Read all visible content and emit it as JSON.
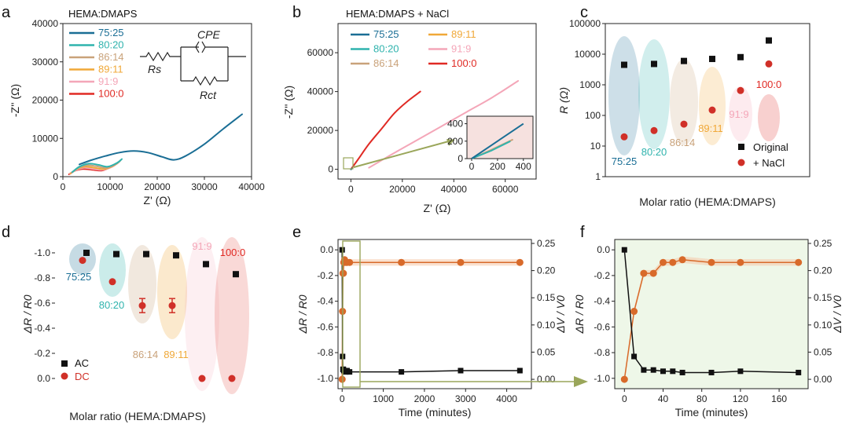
{
  "colors": {
    "75:25": "#1a6e95",
    "80:20": "#2fb3ad",
    "86:14": "#c9a27a",
    "89:11": "#f0a838",
    "91:9": "#f4a6b8",
    "100:0": "#e02a24",
    "ac": "#111111",
    "dc": "#d03028",
    "dv": "#d86a2a",
    "inset_arrow": "#9aa65a"
  },
  "chart_data": [
    {
      "panel": "a",
      "type": "line",
      "title": "HEMA:DMAPS",
      "xlabel": "Z' (Ω)",
      "ylabel": "-Z'' (Ω)",
      "xlim": [
        0,
        40000
      ],
      "ylim": [
        0,
        40000
      ],
      "xticks": [
        "0",
        "10000",
        "20000",
        "30000",
        "40000"
      ],
      "yticks": [
        "0",
        "10000",
        "20000",
        "30000",
        "40000"
      ],
      "circuit_labels": {
        "rs": "Rs",
        "cpe": "CPE",
        "rct": "Rct"
      },
      "series": [
        {
          "name": "75:25",
          "x": [
            3500,
            6000,
            9000,
            12000,
            15000,
            18000,
            21000,
            23500,
            26000,
            30000,
            34000,
            38000
          ],
          "y": [
            3200,
            4300,
            5400,
            6300,
            6700,
            6300,
            5200,
            4400,
            5400,
            8500,
            12500,
            16300
          ]
        },
        {
          "name": "80:20",
          "x": [
            2000,
            3500,
            5500,
            7500,
            9500,
            11500,
            12500
          ],
          "y": [
            1200,
            2600,
            3400,
            3100,
            2600,
            3600,
            4600
          ]
        },
        {
          "name": "86:14",
          "x": [
            1800,
            3300,
            5200,
            7200,
            9200,
            11200,
            12200
          ],
          "y": [
            1000,
            2300,
            3000,
            2700,
            2300,
            3200,
            4200
          ]
        },
        {
          "name": "89:11",
          "x": [
            1600,
            3000,
            4800,
            6800,
            8800,
            10800,
            11800
          ],
          "y": [
            800,
            2000,
            2600,
            2300,
            2000,
            2900,
            3800
          ]
        },
        {
          "name": "91:9",
          "x": [
            1500,
            2800,
            4500,
            6500,
            8500,
            10500,
            11500
          ],
          "y": [
            700,
            1700,
            2300,
            2000,
            1800,
            2600,
            3500
          ]
        },
        {
          "name": "100:0",
          "x": [
            1300,
            2500,
            4200,
            6200,
            8200,
            10000,
            11000
          ],
          "y": [
            600,
            1500,
            2000,
            1800,
            1600,
            2400,
            3200
          ]
        }
      ]
    },
    {
      "panel": "b",
      "type": "line",
      "title": "HEMA:DMAPS + NaCl",
      "xlabel": "Z' (Ω)",
      "ylabel": "-Z'' (Ω)",
      "xlim": [
        -5000,
        72000
      ],
      "ylim": [
        -5000,
        75000
      ],
      "xticks": [
        "0",
        "20000",
        "40000",
        "60000"
      ],
      "yticks": [
        "0",
        "20000",
        "40000",
        "60000"
      ],
      "series": [
        {
          "name": "75:25",
          "x": [
            0,
            150,
            300,
            400
          ],
          "y": [
            0,
            150,
            300,
            400
          ]
        },
        {
          "name": "80:20",
          "x": [
            0,
            150,
            300
          ],
          "y": [
            0,
            90,
            200
          ]
        },
        {
          "name": "86:14",
          "x": [
            0,
            150,
            320
          ],
          "y": [
            0,
            100,
            220
          ]
        },
        {
          "name": "89:11",
          "x": [
            0,
            200
          ],
          "y": [
            0,
            120
          ]
        },
        {
          "name": "91:9",
          "x": [
            7000,
            15000,
            25000,
            35000,
            45000,
            55000,
            65000
          ],
          "y": [
            800,
            7000,
            14500,
            22000,
            29500,
            37000,
            45500
          ]
        },
        {
          "name": "100:0",
          "x": [
            0,
            3000,
            7000,
            12000,
            17000,
            22000,
            27000
          ],
          "y": [
            0,
            5500,
            13000,
            21000,
            29000,
            35000,
            40000
          ]
        }
      ],
      "inset": {
        "xlim": [
          0,
          450
        ],
        "ylim": [
          0,
          450
        ],
        "xticks": [
          "0",
          "200",
          "400"
        ],
        "yticks": [
          "0",
          "200",
          "400"
        ]
      }
    },
    {
      "panel": "c",
      "type": "scatter",
      "xlabel": "Molar ratio (HEMA:DMAPS)",
      "ylabel": "R (Ω)",
      "ylim": [
        1,
        100000
      ],
      "yscale": "log",
      "yticks": [
        "1",
        "10",
        "100",
        "1000",
        "10000",
        "100000"
      ],
      "categories": [
        "75:25",
        "80:20",
        "86:14",
        "89:11",
        "91:9",
        "100:0"
      ],
      "series": [
        {
          "name": "Original",
          "values": [
            4500,
            4800,
            6000,
            7000,
            8000,
            28000
          ]
        },
        {
          "name": "+ NaCl",
          "values": [
            20,
            32,
            52,
            150,
            650,
            4800
          ]
        }
      ]
    },
    {
      "panel": "d",
      "type": "scatter",
      "xlabel": "Molar ratio (HEMA:DMAPS)",
      "ylabel": "ΔR / R0",
      "ylim": [
        0.1,
        -1.1
      ],
      "yticks": [
        "-1.0",
        "-0.8",
        "-0.6",
        "-0.4",
        "-0.2",
        "0.0"
      ],
      "categories": [
        "75:25",
        "80:20",
        "86:14",
        "89:11",
        "91:9",
        "100:0"
      ],
      "series": [
        {
          "name": "AC",
          "values": [
            -1.0,
            -0.99,
            -0.99,
            -0.98,
            -0.91,
            -0.83
          ]
        },
        {
          "name": "DC",
          "values": [
            -0.94,
            -0.77,
            -0.58,
            -0.58,
            0.0,
            0.0
          ]
        }
      ]
    },
    {
      "panel": "e",
      "type": "line",
      "xlabel": "Time (minutes)",
      "ylabel": "ΔR / R0",
      "y2label": "ΔV / V0",
      "xlim": [
        -100,
        4600
      ],
      "ylim": [
        -1.05,
        0.05
      ],
      "y2lim": [
        -0.01,
        0.25
      ],
      "xticks": [
        "0",
        "1000",
        "2000",
        "3000",
        "4000"
      ],
      "yticks": [
        "0.0",
        "-0.2",
        "-0.4",
        "-0.6",
        "-0.8",
        "-1.0"
      ],
      "y2ticks": [
        "0.00",
        "0.05",
        "0.10",
        "0.15",
        "0.20",
        "0.25"
      ],
      "series": [
        {
          "name": "ΔR/R0",
          "x": [
            0,
            10,
            20,
            30,
            40,
            50,
            60,
            90,
            120,
            180,
            1440,
            2880,
            4320
          ],
          "values": [
            0.0,
            -0.83,
            -0.93,
            -0.93,
            -0.94,
            -0.94,
            -0.94,
            -0.95,
            -0.94,
            -0.95,
            -0.95,
            -0.94,
            -0.94
          ]
        },
        {
          "name": "ΔV/V0",
          "x": [
            0,
            10,
            20,
            30,
            40,
            50,
            60,
            90,
            120,
            180,
            1440,
            2880,
            4320
          ],
          "values": [
            0.0,
            0.125,
            0.195,
            0.195,
            0.215,
            0.215,
            0.22,
            0.215,
            0.215,
            0.215,
            0.215,
            0.215,
            0.215
          ]
        }
      ]
    },
    {
      "panel": "f",
      "type": "line",
      "xlabel": "Time (minutes)",
      "ylabel": "ΔR / R0",
      "y2label": "ΔV / V0",
      "xlim": [
        -10,
        190
      ],
      "ylim": [
        -1.05,
        0.05
      ],
      "y2lim": [
        -0.01,
        0.25
      ],
      "xticks": [
        "0",
        "40",
        "80",
        "120",
        "160"
      ],
      "yticks": [
        "0.0",
        "-0.2",
        "-0.4",
        "-0.6",
        "-0.8",
        "-1.0"
      ],
      "y2ticks": [
        "0.00",
        "0.05",
        "0.10",
        "0.15",
        "0.20",
        "0.25"
      ],
      "series": [
        {
          "name": "ΔR/R0",
          "x": [
            0,
            10,
            20,
            30,
            40,
            50,
            60,
            90,
            120,
            180
          ],
          "values": [
            0.0,
            -0.83,
            -0.935,
            -0.935,
            -0.945,
            -0.945,
            -0.955,
            -0.955,
            -0.945,
            -0.955
          ]
        },
        {
          "name": "ΔV/V0",
          "x": [
            0,
            10,
            20,
            30,
            40,
            50,
            60,
            90,
            120,
            180
          ],
          "values": [
            0.0,
            0.125,
            0.195,
            0.195,
            0.215,
            0.215,
            0.22,
            0.215,
            0.215,
            0.215
          ]
        }
      ]
    }
  ]
}
